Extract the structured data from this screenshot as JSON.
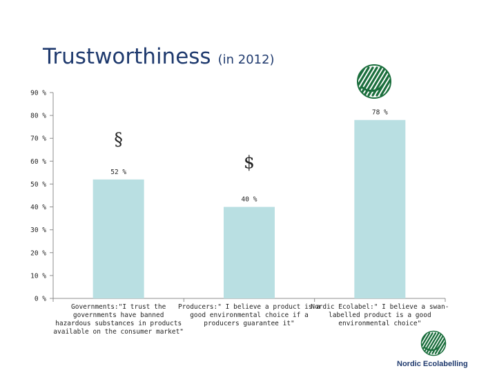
{
  "title": "Trustworthiness",
  "subtitle": "(in 2012)",
  "chart_data": {
    "type": "bar",
    "categories": [
      [
        "Governments:\"I trust the",
        "governments have banned",
        "hazardous substances in products",
        "available on the consumer market\""
      ],
      [
        "Producers:\" I believe a product is a",
        "good environmental choice if a",
        "producers guarantee it\""
      ],
      [
        "Nordic Ecolabel:\" I believe a swan-",
        "labelled product is a good",
        "environmental choice\""
      ]
    ],
    "values": [
      52,
      40,
      78
    ],
    "data_labels": [
      "52 %",
      "40 %",
      "78 %"
    ],
    "y_ticks": [
      "0 %",
      "10 %",
      "20 %",
      "30 %",
      "40 %",
      "50 %",
      "60 %",
      "70 %",
      "80 %",
      "90 %"
    ],
    "ylim": [
      0,
      90
    ],
    "grid": false,
    "annotations": [
      {
        "text": "§",
        "category": 0,
        "value": 67
      },
      {
        "text": "$",
        "category": 1,
        "value": 57
      }
    ],
    "colors": {
      "bar": "#b9dfe2",
      "axis": "#8c8c8c",
      "text": "#222222",
      "title": "#1f3a6e",
      "logo": "#1a6e3c"
    }
  },
  "logos": [
    {
      "name": "nordic-swan-ecolabel"
    },
    {
      "name": "nordic-swan-ecolabel-small"
    }
  ],
  "brand": "Nordic Ecolabelling"
}
